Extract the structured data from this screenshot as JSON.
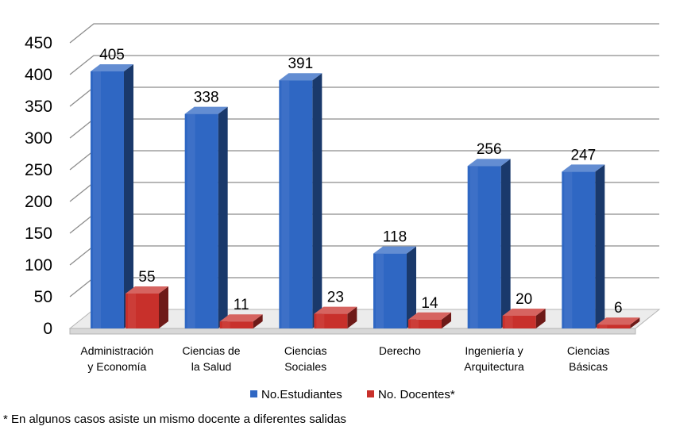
{
  "chart_data": {
    "type": "bar",
    "style": "3d-clustered",
    "categories": [
      [
        "Administración",
        "y Economía"
      ],
      [
        "Ciencias de",
        "la Salud"
      ],
      [
        "Ciencias",
        "Sociales"
      ],
      [
        "Derecho"
      ],
      [
        "Ingeniería y",
        "Arquitectura"
      ],
      [
        "Ciencias",
        "Básicas"
      ]
    ],
    "series": [
      {
        "name": "No.Estudiantes",
        "values": [
          405,
          338,
          391,
          118,
          256,
          247
        ],
        "color": "#2F67C3"
      },
      {
        "name": "No. Docentes*",
        "values": [
          55,
          11,
          23,
          14,
          20,
          6
        ],
        "color": "#C8302B"
      }
    ],
    "ylim": [
      0,
      450
    ],
    "yticks": [
      "0",
      "50",
      "100",
      "150",
      "200",
      "250",
      "300",
      "350",
      "400",
      "450"
    ],
    "grid": true,
    "legend": "bottom-center",
    "title": "",
    "xlabel": "",
    "ylabel": ""
  },
  "footnote": "* En algunos casos asiste un mismo docente a diferentes salidas"
}
